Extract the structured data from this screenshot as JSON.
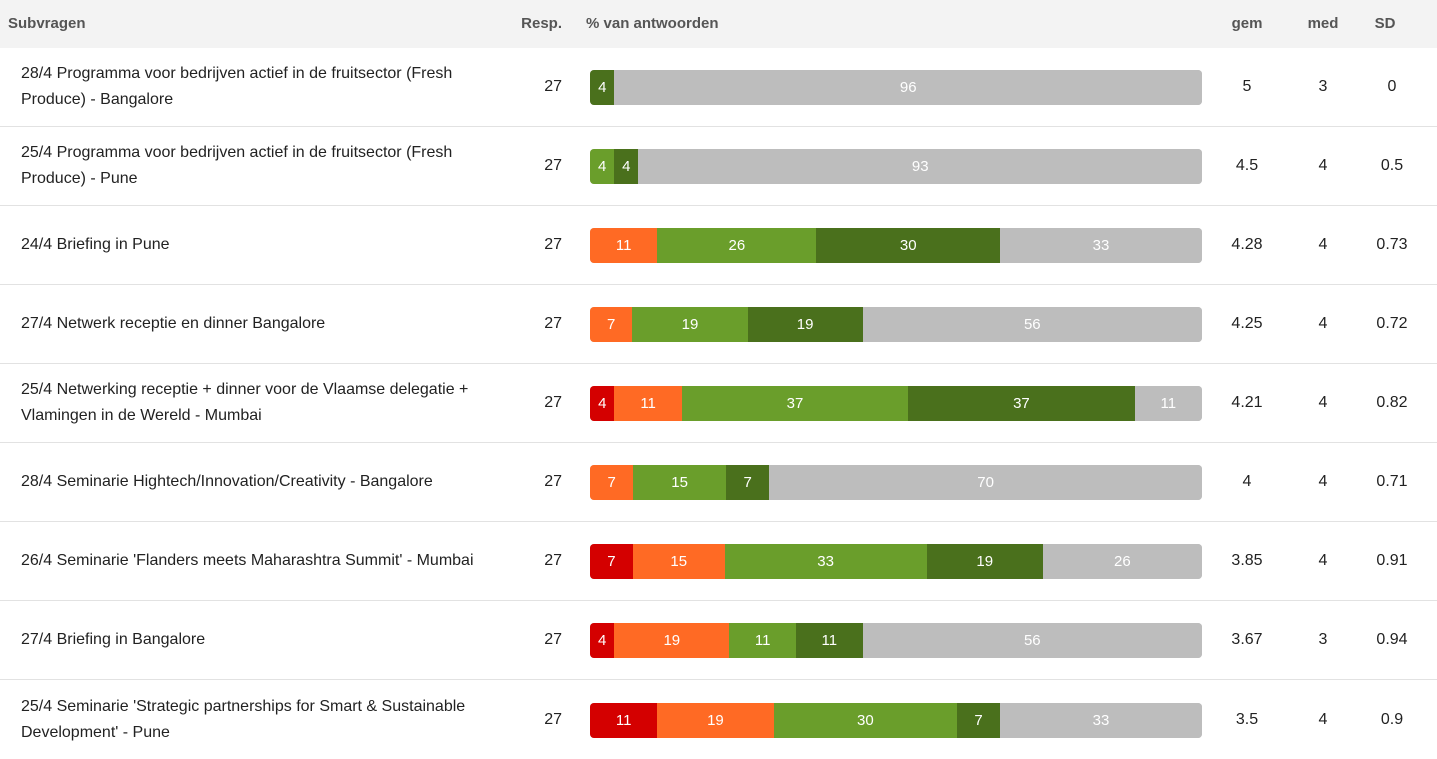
{
  "header": {
    "subvragen": "Subvragen",
    "resp": "Resp.",
    "pct": "% van antwoorden",
    "gem": "gem",
    "med": "med",
    "sd": "SD"
  },
  "colors": {
    "very_negative": "#d40000",
    "negative": "#ff6a24",
    "positive": "#6a9e2b",
    "very_positive": "#4a701c",
    "other": "#bdbdbd"
  },
  "chart_data": {
    "type": "bar",
    "orientation": "horizontal-stacked-100",
    "categories": [
      "28/4 Programma voor bedrijven actief in de fruitsector (Fresh Produce) - Bangalore",
      "25/4 Programma voor bedrijven actief in de fruitsector (Fresh Produce) - Pune",
      "24/4 Briefing in Pune",
      "27/4 Netwerk receptie en dinner Bangalore",
      "25/4 Netwerking receptie + dinner voor de Vlaamse delegatie + Vlamingen in de Wereld - Mumbai",
      "28/4 Seminarie Hightech/Innovation/Creativity - Bangalore",
      "26/4 Seminarie 'Flanders meets Maharashtra Summit' - Mumbai",
      "27/4 Briefing in Bangalore",
      "25/4 Seminarie 'Strategic partnerships for Smart & Sustainable Development' - Pune"
    ],
    "series_colors": [
      "#d40000",
      "#ff6a24",
      "#6a9e2b",
      "#4a701c",
      "#bdbdbd"
    ],
    "rows": [
      {
        "resp": "27",
        "gem": "5",
        "med": "3",
        "sd": "0",
        "segments": [
          0,
          0,
          0,
          4,
          96
        ]
      },
      {
        "resp": "27",
        "gem": "4.5",
        "med": "4",
        "sd": "0.5",
        "segments": [
          0,
          0,
          4,
          4,
          93
        ]
      },
      {
        "resp": "27",
        "gem": "4.28",
        "med": "4",
        "sd": "0.73",
        "segments": [
          0,
          11,
          26,
          30,
          33
        ]
      },
      {
        "resp": "27",
        "gem": "4.25",
        "med": "4",
        "sd": "0.72",
        "segments": [
          0,
          7,
          19,
          19,
          56
        ]
      },
      {
        "resp": "27",
        "gem": "4.21",
        "med": "4",
        "sd": "0.82",
        "segments": [
          4,
          11,
          37,
          37,
          11
        ]
      },
      {
        "resp": "27",
        "gem": "4",
        "med": "4",
        "sd": "0.71",
        "segments": [
          0,
          7,
          15,
          7,
          70
        ]
      },
      {
        "resp": "27",
        "gem": "3.85",
        "med": "4",
        "sd": "0.91",
        "segments": [
          7,
          15,
          33,
          19,
          26
        ]
      },
      {
        "resp": "27",
        "gem": "3.67",
        "med": "3",
        "sd": "0.94",
        "segments": [
          4,
          19,
          11,
          11,
          56
        ]
      },
      {
        "resp": "27",
        "gem": "3.5",
        "med": "4",
        "sd": "0.9",
        "segments": [
          11,
          19,
          30,
          7,
          33
        ]
      }
    ]
  }
}
